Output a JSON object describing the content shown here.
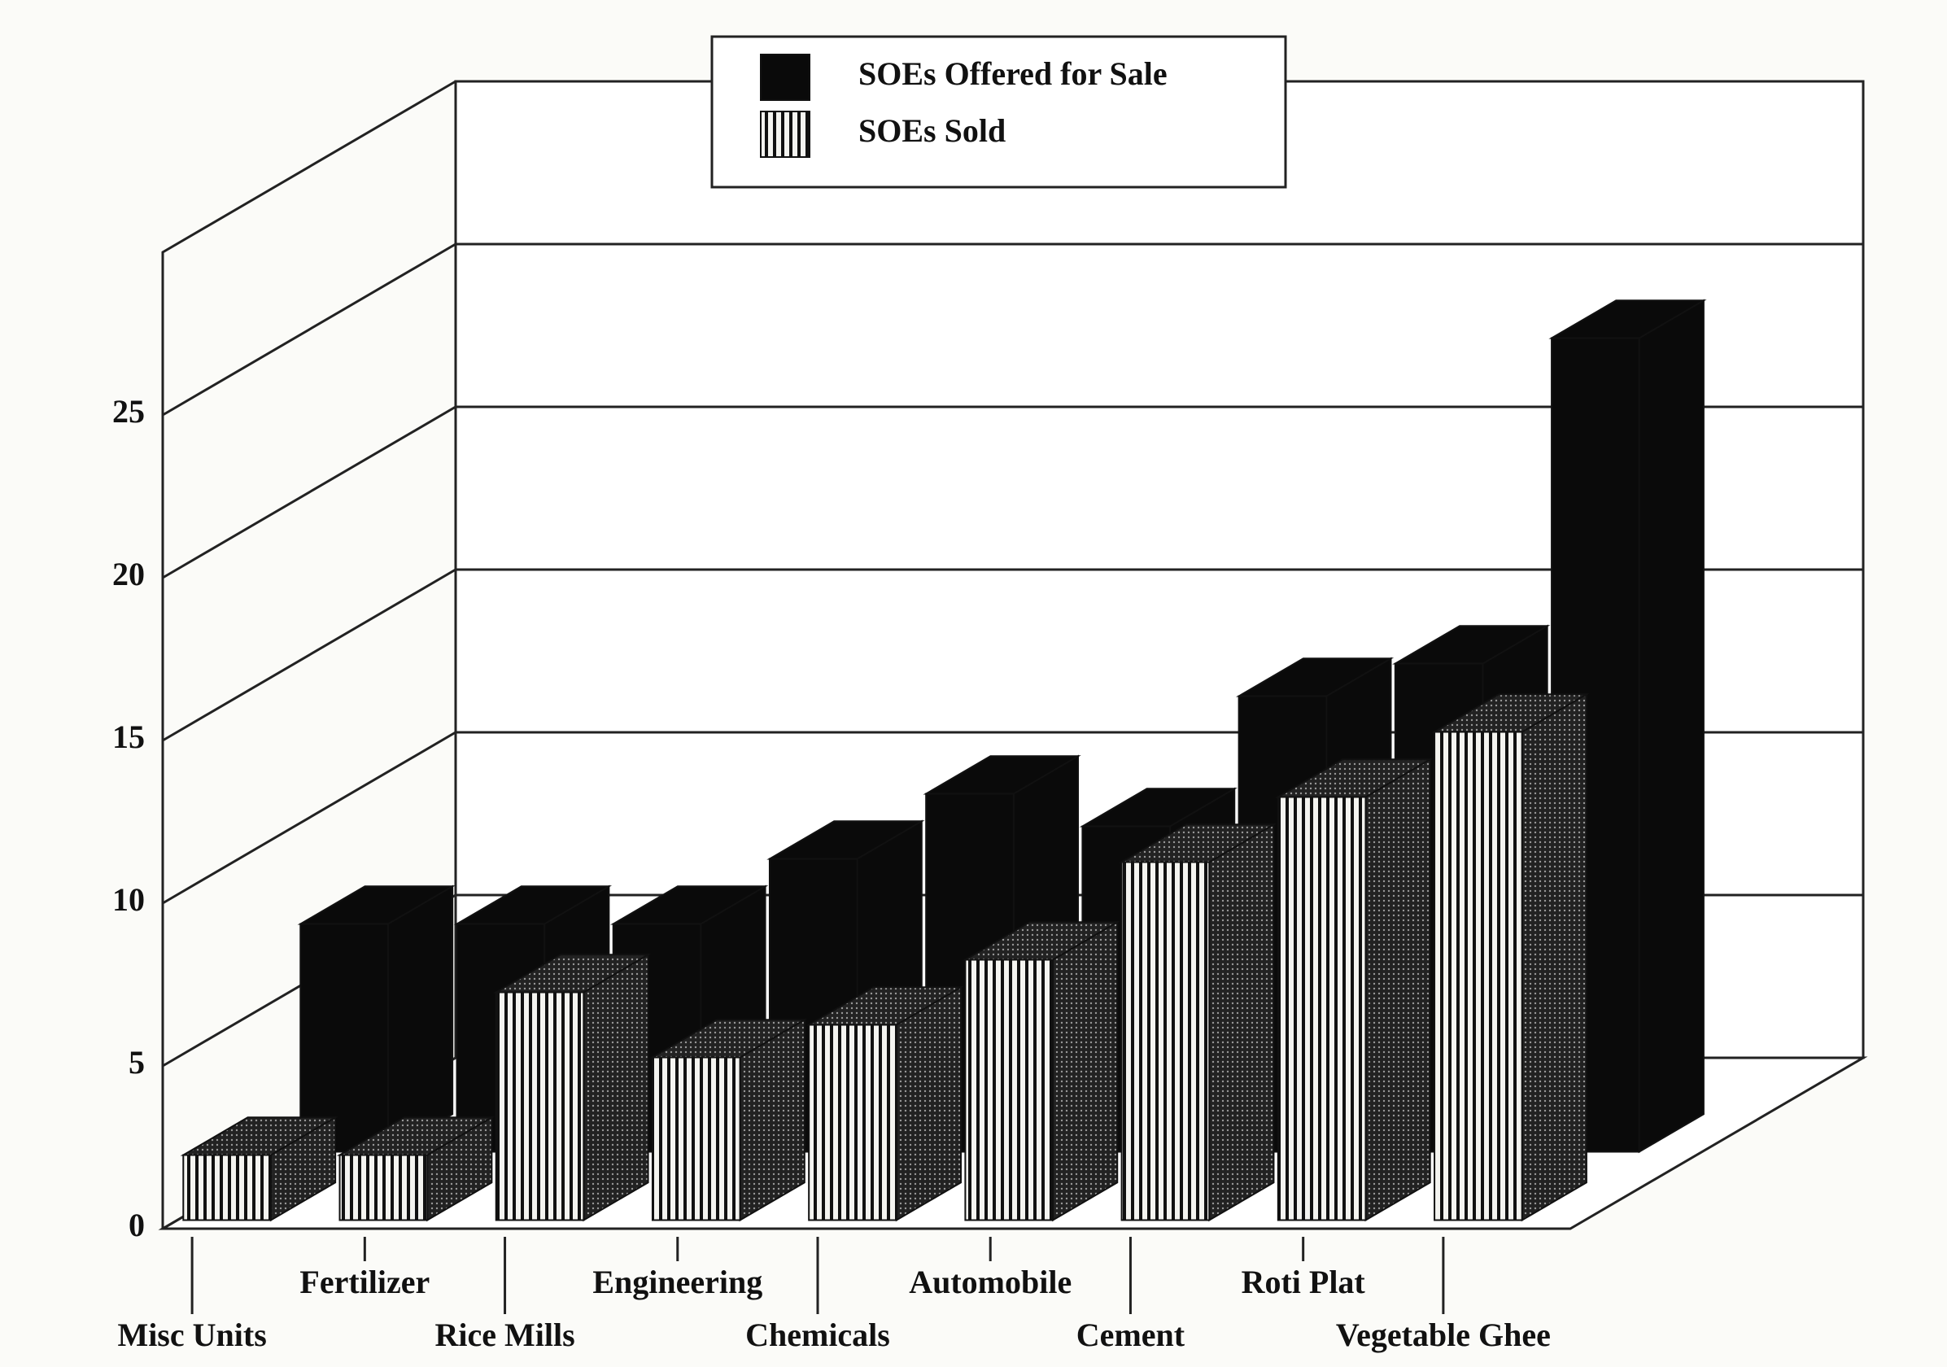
{
  "chart_data": {
    "type": "bar3d",
    "categories": [
      "Misc Units",
      "Fertilizer",
      "Rice Mills",
      "Engineering",
      "Chemicals",
      "Automobile",
      "Cement",
      "Roti Plat",
      "Vegetable Ghee"
    ],
    "series": [
      {
        "name": "SOEs Offered for Sale",
        "color": "#0a0a0a",
        "values": [
          7,
          7,
          7,
          9,
          11,
          10,
          14,
          15,
          25
        ]
      },
      {
        "name": "SOEs Sold",
        "color": "#111111",
        "hatch": "vertical",
        "values": [
          2,
          2,
          7,
          5,
          6,
          8,
          11,
          13,
          15
        ]
      }
    ],
    "ylim": [
      0,
      30
    ],
    "yticks": [
      0,
      5,
      10,
      15,
      20,
      25
    ],
    "grid": true,
    "legend": "top"
  }
}
